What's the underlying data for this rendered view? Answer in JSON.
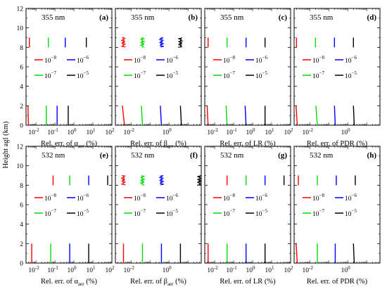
{
  "figure": {
    "ylabel": "Height agl (km)"
  },
  "legend_entries": [
    {
      "label": "10",
      "exp": "−8",
      "color": "#ff0000"
    },
    {
      "label": "10",
      "exp": "−6",
      "color": "#0000ff"
    },
    {
      "label": "10",
      "exp": "−7",
      "color": "#00dd00"
    },
    {
      "label": "10",
      "exp": "−5",
      "color": "#000000"
    }
  ],
  "chart_data": [
    {
      "id": "a",
      "letter": "(a)",
      "wavelength": "355 nm",
      "type": "line",
      "xlabel": "Rel. err. of α_aer (%)",
      "xscale": "log",
      "xlim": [
        0.003,
        100
      ],
      "ylim": [
        0,
        12
      ],
      "xticks": [
        {
          "v": 0.01,
          "exp": "-2"
        },
        {
          "v": 0.1,
          "exp": "-1"
        },
        {
          "v": 1,
          "exp": "0"
        },
        {
          "v": 10,
          "exp": "1"
        },
        {
          "v": 100,
          "exp": "2"
        }
      ],
      "series": [
        {
          "color": "#ff0000",
          "low": {
            "x": [
              0.004,
              0.0038
            ],
            "y": [
              0,
              2
            ]
          },
          "high": {
            "x": [
              0.0045,
              0.0045
            ],
            "y": [
              8,
              9
            ]
          }
        },
        {
          "color": "#00dd00",
          "low": {
            "x": [
              0.035,
              0.035
            ],
            "y": [
              0,
              2
            ]
          },
          "high": {
            "x": [
              0.045,
              0.045
            ],
            "y": [
              8,
              9
            ]
          }
        },
        {
          "color": "#0000ff",
          "low": {
            "x": [
              0.13,
              0.13
            ],
            "y": [
              0,
              2
            ]
          },
          "high": {
            "x": [
              0.35,
              0.35
            ],
            "y": [
              8,
              9
            ]
          }
        },
        {
          "color": "#000000",
          "low": {
            "x": [
              0.5,
              0.5
            ],
            "y": [
              0,
              2
            ]
          },
          "high": {
            "x": [
              4.5,
              4.5
            ],
            "y": [
              8,
              9
            ]
          }
        }
      ]
    },
    {
      "id": "b",
      "letter": "(b)",
      "wavelength": "355 nm",
      "type": "line",
      "xlabel": "Rel. err. of β_aer (%)",
      "xscale": "log",
      "xlim": [
        0.0015,
        50
      ],
      "ylim": [
        0,
        12
      ],
      "xticks": [
        {
          "v": 0.01,
          "exp": "-2"
        },
        {
          "v": 1,
          "exp": "0"
        }
      ],
      "series": [
        {
          "color": "#ff0000",
          "low": {
            "x": [
              0.0045,
              0.0035
            ],
            "y": [
              0,
              2
            ]
          },
          "high": {
            "x": [
              0.004,
              0.004
            ],
            "y": [
              8,
              9
            ]
          },
          "noisy": true
        },
        {
          "color": "#00dd00",
          "low": {
            "x": [
              0.04,
              0.035
            ],
            "y": [
              0,
              2
            ]
          },
          "high": {
            "x": [
              0.04,
              0.04
            ],
            "y": [
              8,
              9
            ]
          },
          "noisy": true
        },
        {
          "color": "#0000ff",
          "low": {
            "x": [
              0.4,
              0.35
            ],
            "y": [
              0,
              2
            ]
          },
          "high": {
            "x": [
              0.4,
              0.4
            ],
            "y": [
              8,
              9
            ]
          },
          "noisy": true
        },
        {
          "color": "#000000",
          "low": {
            "x": [
              4.5,
              4
            ],
            "y": [
              0,
              2
            ]
          },
          "high": {
            "x": [
              4,
              4
            ],
            "y": [
              8,
              9
            ]
          },
          "noisy": true
        }
      ]
    },
    {
      "id": "c",
      "letter": "(c)",
      "wavelength": "355 nm",
      "type": "line",
      "xlabel": "Rel. err. of LR (%)",
      "xscale": "log",
      "xlim": [
        0.003,
        100
      ],
      "ylim": [
        0,
        12
      ],
      "xticks": [
        {
          "v": 0.01,
          "exp": "-2"
        },
        {
          "v": 0.1,
          "exp": "-1"
        },
        {
          "v": 1,
          "exp": "0"
        },
        {
          "v": 10,
          "exp": "1"
        },
        {
          "v": 100,
          "exp": "2"
        }
      ],
      "series": [
        {
          "color": "#ff0000",
          "low": {
            "x": [
              0.0045,
              0.004
            ],
            "y": [
              0,
              2
            ]
          },
          "high": {
            "x": [
              0.0045,
              0.0045
            ],
            "y": [
              8,
              9
            ]
          }
        },
        {
          "color": "#00dd00",
          "low": {
            "x": [
              0.045,
              0.04
            ],
            "y": [
              0,
              2
            ]
          },
          "high": {
            "x": [
              0.045,
              0.045
            ],
            "y": [
              8,
              9
            ]
          }
        },
        {
          "color": "#0000ff",
          "low": {
            "x": [
              0.45,
              0.4
            ],
            "y": [
              0,
              2
            ]
          },
          "high": {
            "x": [
              0.45,
              0.45
            ],
            "y": [
              8,
              9
            ]
          }
        },
        {
          "color": "#000000",
          "low": {
            "x": [
              4.5,
              4.5
            ],
            "y": [
              0,
              2
            ]
          },
          "high": {
            "x": [
              4.5,
              4.5
            ],
            "y": [
              8,
              9
            ]
          }
        }
      ]
    },
    {
      "id": "d",
      "letter": "(d)",
      "wavelength": "355 nm",
      "type": "line",
      "xlabel": "Rel. err. of PDR (%)",
      "xscale": "log",
      "xlim": [
        0.0015,
        50
      ],
      "ylim": [
        0,
        12
      ],
      "xticks": [
        {
          "v": 0.01,
          "exp": "-2"
        },
        {
          "v": 1,
          "exp": "0"
        }
      ],
      "series": [
        {
          "color": "#ff0000",
          "low": {
            "x": [
              0.0022,
              0.0019
            ],
            "y": [
              0,
              2
            ]
          },
          "high": {
            "x": [
              0.002,
              0.002
            ],
            "y": [
              8,
              9
            ]
          }
        },
        {
          "color": "#00dd00",
          "low": {
            "x": [
              0.025,
              0.021
            ],
            "y": [
              0,
              2
            ]
          },
          "high": {
            "x": [
              0.02,
              0.02
            ],
            "y": [
              8,
              9
            ]
          }
        },
        {
          "color": "#0000ff",
          "low": {
            "x": [
              0.22,
              0.2
            ],
            "y": [
              0,
              2
            ]
          },
          "high": {
            "x": [
              0.2,
              0.2
            ],
            "y": [
              8,
              9
            ]
          }
        },
        {
          "color": "#000000",
          "low": {
            "x": [
              2.2,
              2
            ],
            "y": [
              0,
              2
            ]
          },
          "high": {
            "x": [
              2,
              2
            ],
            "y": [
              8,
              9
            ]
          }
        }
      ]
    },
    {
      "id": "e",
      "letter": "(e)",
      "wavelength": "532 nm",
      "type": "line",
      "xlabel": "Rel. err. of α_aer (%)",
      "xscale": "log",
      "xlim": [
        0.003,
        100
      ],
      "ylim": [
        0,
        12
      ],
      "xticks": [
        {
          "v": 0.01,
          "exp": "-2"
        },
        {
          "v": 0.1,
          "exp": "-1"
        },
        {
          "v": 1,
          "exp": "0"
        },
        {
          "v": 10,
          "exp": "1"
        },
        {
          "v": 100,
          "exp": "2"
        }
      ],
      "series": [
        {
          "color": "#ff0000",
          "low": {
            "x": [
              0.006,
              0.006
            ],
            "y": [
              0,
              2
            ]
          },
          "high": {
            "x": [
              0.08,
              0.08
            ],
            "y": [
              8,
              9
            ]
          }
        },
        {
          "color": "#00dd00",
          "low": {
            "x": [
              0.06,
              0.06
            ],
            "y": [
              0,
              2
            ]
          },
          "high": {
            "x": [
              0.6,
              0.6
            ],
            "y": [
              8,
              9
            ]
          }
        },
        {
          "color": "#0000ff",
          "low": {
            "x": [
              0.6,
              0.6
            ],
            "y": [
              0,
              2
            ]
          },
          "high": {
            "x": [
              6,
              6
            ],
            "y": [
              8,
              9
            ]
          }
        },
        {
          "color": "#000000",
          "low": {
            "x": [
              6,
              6
            ],
            "y": [
              0,
              2
            ]
          },
          "high": {
            "x": [
              60,
              60
            ],
            "y": [
              8,
              9
            ]
          }
        }
      ]
    },
    {
      "id": "f",
      "letter": "(f)",
      "wavelength": "532 nm",
      "type": "line",
      "xlabel": "Rel. err. of β_aer (%)",
      "xscale": "log",
      "xlim": [
        0.0015,
        50
      ],
      "ylim": [
        0,
        12
      ],
      "xticks": [
        {
          "v": 0.01,
          "exp": "-2"
        },
        {
          "v": 1,
          "exp": "0"
        }
      ],
      "series": [
        {
          "color": "#ff0000",
          "low": {
            "x": [
              0.004,
              0.004
            ],
            "y": [
              0,
              2
            ]
          },
          "high": {
            "x": [
              0.004,
              0.004
            ],
            "y": [
              8,
              9
            ]
          },
          "noisy": true
        },
        {
          "color": "#00dd00",
          "low": {
            "x": [
              0.04,
              0.04
            ],
            "y": [
              0,
              2
            ]
          },
          "high": {
            "x": [
              0.04,
              0.04
            ],
            "y": [
              8,
              9
            ]
          },
          "noisy": true
        },
        {
          "color": "#0000ff",
          "low": {
            "x": [
              0.4,
              0.4
            ],
            "y": [
              0,
              2
            ]
          },
          "high": {
            "x": [
              0.4,
              0.4
            ],
            "y": [
              8,
              9
            ]
          },
          "noisy": true
        },
        {
          "color": "#000000",
          "low": {
            "x": [
              4,
              4
            ],
            "y": [
              0,
              2
            ]
          },
          "high": {
            "x": [
              40,
              40
            ],
            "y": [
              8,
              9
            ]
          },
          "noisy": true
        }
      ]
    },
    {
      "id": "g",
      "letter": "(g)",
      "wavelength": "532 nm",
      "type": "line",
      "xlabel": "Rel. err. of LR (%)",
      "xscale": "log",
      "xlim": [
        0.003,
        100
      ],
      "ylim": [
        0,
        12
      ],
      "xticks": [
        {
          "v": 0.01,
          "exp": "-2"
        },
        {
          "v": 0.1,
          "exp": "-1"
        },
        {
          "v": 1,
          "exp": "0"
        },
        {
          "v": 10,
          "exp": "1"
        },
        {
          "v": 100,
          "exp": "2"
        }
      ],
      "series": [
        {
          "color": "#ff0000",
          "low": {
            "x": [
              0.0045,
              0.0045
            ],
            "y": [
              0,
              2
            ]
          },
          "high": {
            "x": [
              0.045,
              0.045
            ],
            "y": [
              8,
              9
            ]
          }
        },
        {
          "color": "#00dd00",
          "low": {
            "x": [
              0.045,
              0.045
            ],
            "y": [
              0,
              2
            ]
          },
          "high": {
            "x": [
              0.45,
              0.45
            ],
            "y": [
              8,
              9
            ]
          }
        },
        {
          "color": "#0000ff",
          "low": {
            "x": [
              0.45,
              0.45
            ],
            "y": [
              0,
              2
            ]
          },
          "high": {
            "x": [
              4.5,
              4.5
            ],
            "y": [
              8,
              9
            ]
          }
        },
        {
          "color": "#000000",
          "low": {
            "x": [
              4.5,
              4.5
            ],
            "y": [
              0,
              2
            ]
          },
          "high": {
            "x": [
              45,
              45
            ],
            "y": [
              8,
              9
            ]
          }
        }
      ]
    },
    {
      "id": "h",
      "letter": "(h)",
      "wavelength": "532 nm",
      "type": "line",
      "xlabel": "Rel. err. of PDR (%)",
      "xscale": "log",
      "xlim": [
        0.0015,
        50
      ],
      "ylim": [
        0,
        12
      ],
      "xticks": [
        {
          "v": 0.01,
          "exp": "-2"
        },
        {
          "v": 1,
          "exp": "0"
        }
      ],
      "series": [
        {
          "color": "#ff0000",
          "low": {
            "x": [
              0.0022,
              0.0019
            ],
            "y": [
              0,
              2
            ]
          },
          "high": {
            "x": [
              0.0025,
              0.0025
            ],
            "y": [
              8,
              9
            ]
          }
        },
        {
          "color": "#00dd00",
          "low": {
            "x": [
              0.025,
              0.025
            ],
            "y": [
              0,
              2
            ]
          },
          "high": {
            "x": [
              0.025,
              0.025
            ],
            "y": [
              8,
              9
            ]
          }
        },
        {
          "color": "#0000ff",
          "low": {
            "x": [
              0.22,
              0.22
            ],
            "y": [
              0,
              2
            ]
          },
          "high": {
            "x": [
              0.25,
              0.25
            ],
            "y": [
              8,
              9
            ]
          }
        },
        {
          "color": "#000000",
          "low": {
            "x": [
              2.2,
              2
            ],
            "y": [
              0,
              2
            ]
          },
          "high": {
            "x": [
              2.5,
              2.5
            ],
            "y": [
              8,
              9
            ]
          }
        }
      ]
    }
  ]
}
